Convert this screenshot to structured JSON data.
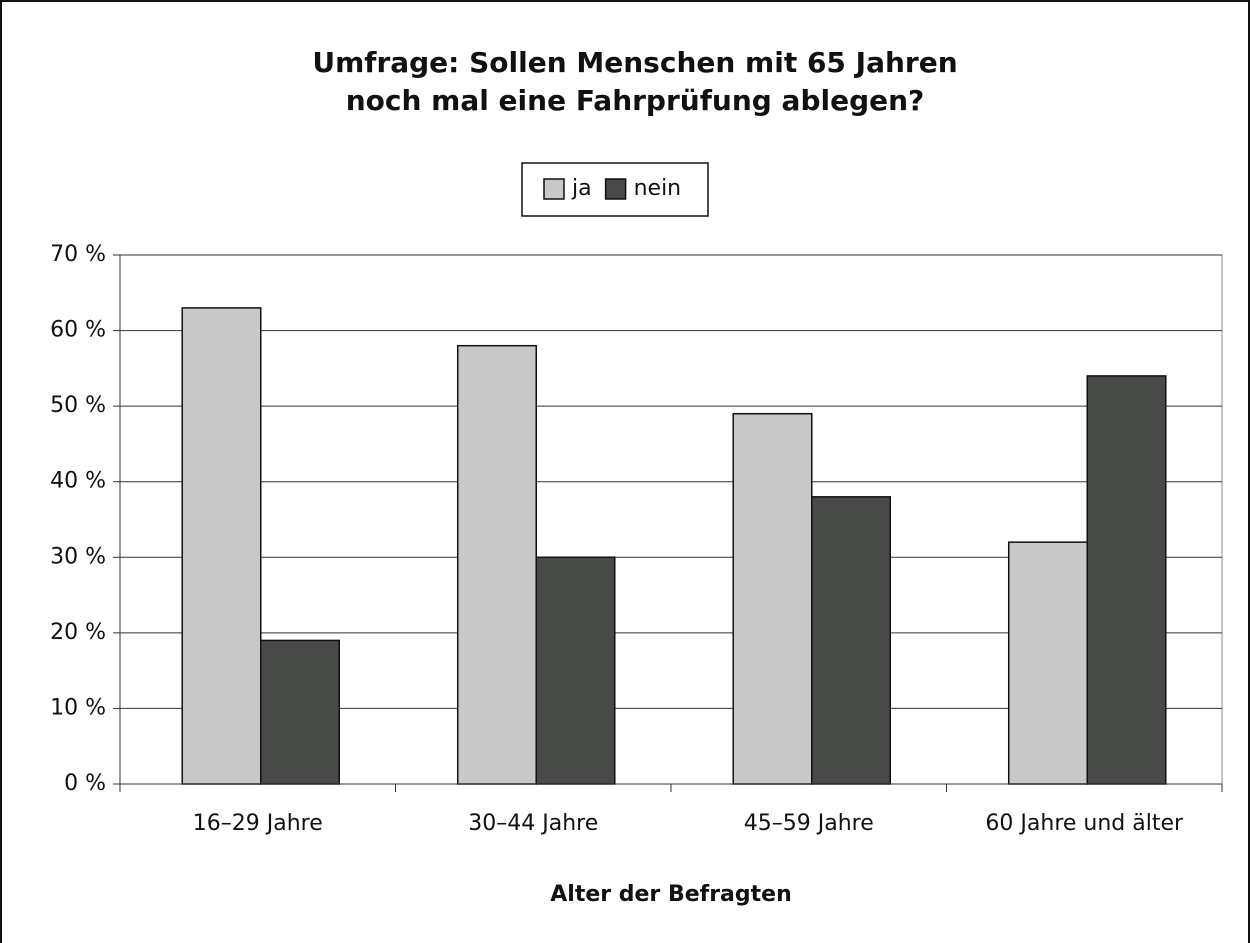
{
  "chart_data": {
    "type": "bar",
    "title": "Umfrage: Sollen Menschen mit 65 Jahren noch mal eine Fahrprüfung ablegen?",
    "x_label": "Alter der Befragten",
    "categories": [
      "16–29 Jahre",
      "30–44 Jahre",
      "45–59 Jahre",
      "60 Jahre und älter"
    ],
    "series": [
      {
        "name": "ja",
        "color": "#c8c8c8",
        "values": [
          63,
          58,
          49,
          32
        ]
      },
      {
        "name": "nein",
        "color": "#484a48",
        "values": [
          19,
          30,
          38,
          54
        ]
      }
    ],
    "ylim": [
      0,
      70
    ],
    "yticks": [
      {
        "value": 0,
        "label": "0 %"
      },
      {
        "value": 10,
        "label": "10 %"
      },
      {
        "value": 20,
        "label": "20 %"
      },
      {
        "value": 30,
        "label": "30 %"
      },
      {
        "value": 40,
        "label": "40 %"
      },
      {
        "value": 50,
        "label": "50 %"
      },
      {
        "value": 60,
        "label": "60 %"
      },
      {
        "value": 70,
        "label": "70 %"
      }
    ],
    "grid": true,
    "legend": "top"
  }
}
